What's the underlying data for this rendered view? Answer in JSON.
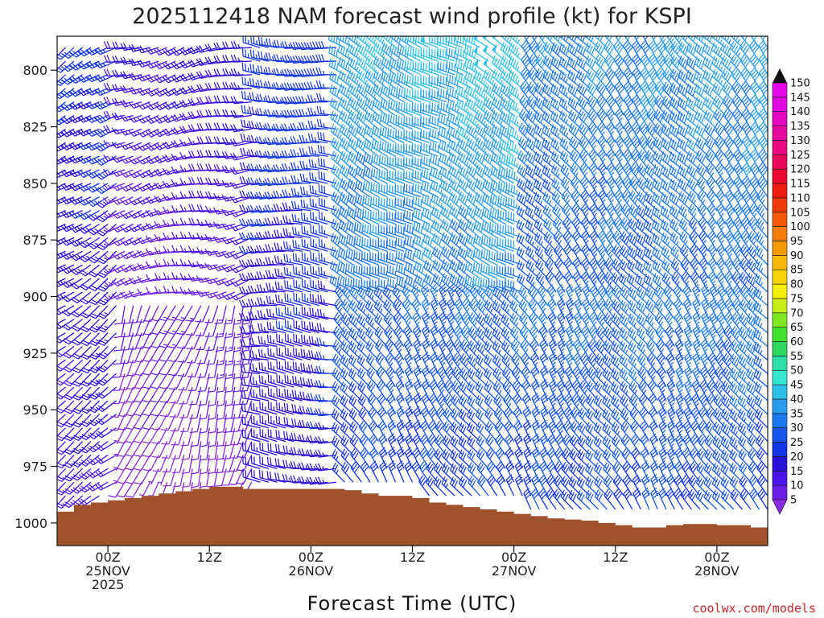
{
  "chart_data": {
    "type": "wind-barb time-height",
    "title": "2025112418 NAM forecast wind profile (kt) for KSPI",
    "xlabel": "Forecast Time (UTC)",
    "ylabel": "",
    "y_ticks": [
      800,
      825,
      850,
      875,
      900,
      925,
      950,
      975,
      1000
    ],
    "ylim": [
      1010,
      785
    ],
    "x_ticks": [
      {
        "hour": 6,
        "lines": [
          "00Z",
          "25NOV",
          "2025"
        ]
      },
      {
        "hour": 18,
        "lines": [
          "12Z"
        ]
      },
      {
        "hour": 30,
        "lines": [
          "00Z",
          "26NOV"
        ]
      },
      {
        "hour": 42,
        "lines": [
          "12Z"
        ]
      },
      {
        "hour": 54,
        "lines": [
          "00Z",
          "27NOV"
        ]
      },
      {
        "hour": 66,
        "lines": [
          "12Z"
        ]
      },
      {
        "hour": 78,
        "lines": [
          "00Z",
          "28NOV"
        ]
      }
    ],
    "xlim": [
      0,
      84
    ],
    "colorbar": {
      "unit": "kt",
      "levels": [
        5,
        10,
        15,
        20,
        25,
        30,
        35,
        40,
        45,
        50,
        55,
        60,
        65,
        70,
        75,
        80,
        85,
        90,
        95,
        100,
        105,
        110,
        115,
        120,
        125,
        130,
        135,
        140,
        145,
        150
      ],
      "colors": [
        "#8a2be2",
        "#6a1fe8",
        "#4a14e8",
        "#2a10d8",
        "#1436e6",
        "#1656ea",
        "#1e78ec",
        "#2a9cee",
        "#2ec0e6",
        "#36e6d0",
        "#2ee0a8",
        "#30d860",
        "#44e030",
        "#80e820",
        "#c8ee18",
        "#f4f00c",
        "#f6d40a",
        "#f6b808",
        "#f59a06",
        "#f27c06",
        "#f25a06",
        "#f03a08",
        "#ee1c10",
        "#ea0a30",
        "#e80a58",
        "#e60a7e",
        "#e40aa0",
        "#e20ac0",
        "#e00ae0",
        "#e40ae8"
      ]
    },
    "terrain_pressure_by_hour": [
      [
        0,
        995
      ],
      [
        2,
        992
      ],
      [
        4,
        991
      ],
      [
        6,
        990
      ],
      [
        8,
        989
      ],
      [
        10,
        988
      ],
      [
        12,
        987
      ],
      [
        14,
        986
      ],
      [
        16,
        985
      ],
      [
        18,
        984
      ],
      [
        20,
        984
      ],
      [
        22,
        985
      ],
      [
        24,
        985
      ],
      [
        26,
        985
      ],
      [
        28,
        985
      ],
      [
        30,
        985
      ],
      [
        32,
        985
      ],
      [
        34,
        985.5
      ],
      [
        36,
        987
      ],
      [
        38,
        988
      ],
      [
        40,
        988
      ],
      [
        42,
        989
      ],
      [
        44,
        991
      ],
      [
        46,
        992
      ],
      [
        48,
        993
      ],
      [
        50,
        994
      ],
      [
        52,
        995
      ],
      [
        54,
        996
      ],
      [
        56,
        997
      ],
      [
        58,
        998
      ],
      [
        60,
        998.5
      ],
      [
        62,
        999
      ],
      [
        64,
        1000
      ],
      [
        66,
        1001
      ],
      [
        68,
        1002
      ],
      [
        70,
        1002
      ],
      [
        72,
        1001
      ],
      [
        74,
        1000.5
      ],
      [
        76,
        1000.5
      ],
      [
        78,
        1001
      ],
      [
        80,
        1001
      ],
      [
        82,
        1002
      ],
      [
        84,
        1002
      ]
    ],
    "wind_field_regimes": [
      {
        "hours": [
          0,
          8
        ],
        "pressure": [
          785,
          1000
        ],
        "direction_deg": 235,
        "speed_kt": [
          15,
          30
        ]
      },
      {
        "hours": [
          8,
          24
        ],
        "pressure": [
          785,
          900
        ],
        "direction_deg": 255,
        "speed_kt": [
          10,
          25
        ]
      },
      {
        "hours": [
          8,
          24
        ],
        "pressure": [
          900,
          1000
        ],
        "direction_deg": 200,
        "speed_kt": [
          5,
          15
        ]
      },
      {
        "hours": [
          24,
          34
        ],
        "pressure": [
          785,
          1000
        ],
        "direction_deg": 275,
        "speed_kt": [
          20,
          30
        ]
      },
      {
        "hours": [
          34,
          56
        ],
        "pressure": [
          785,
          900
        ],
        "direction_deg": 300,
        "speed_kt": [
          35,
          50
        ]
      },
      {
        "hours": [
          34,
          84
        ],
        "pressure": [
          900,
          1000
        ],
        "direction_deg": 325,
        "speed_kt": [
          25,
          40
        ]
      },
      {
        "hours": [
          56,
          84
        ],
        "pressure": [
          785,
          900
        ],
        "direction_deg": 320,
        "speed_kt": [
          30,
          45
        ]
      }
    ]
  },
  "credit": "coolwx.com/models"
}
